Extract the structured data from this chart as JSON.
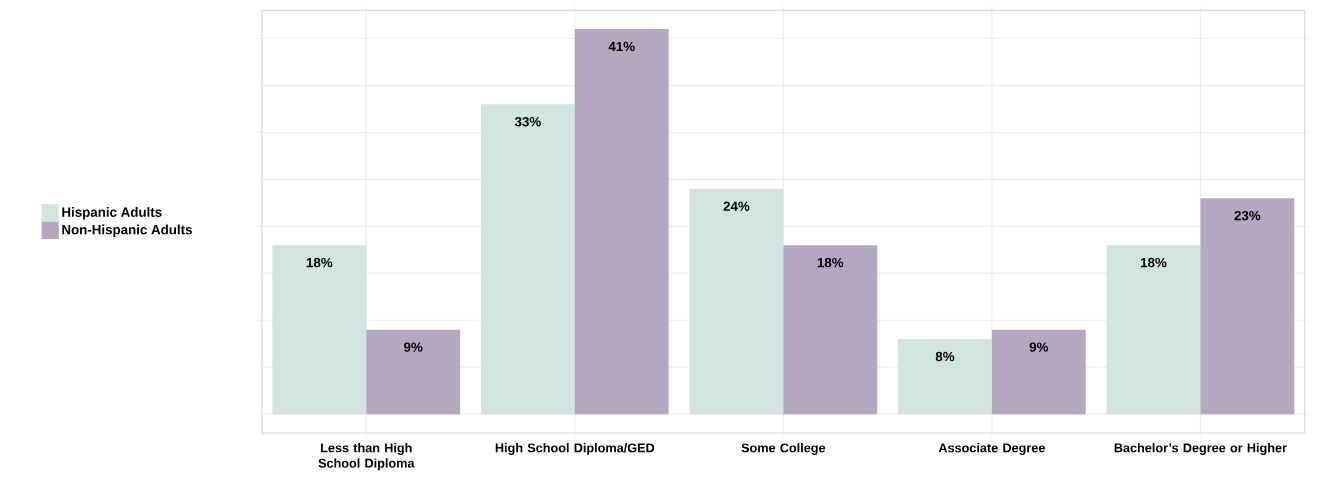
{
  "chart_data": {
    "type": "bar",
    "categories": [
      "Less than High School Diploma",
      "High School Diploma/GED",
      "Some College",
      "Associate Degree",
      "Bachelor’s Degree or Higher"
    ],
    "series": [
      {
        "name": "Hispanic Adults",
        "color": "#d3e3df",
        "values": [
          18,
          33,
          24,
          8,
          18
        ],
        "value_labels": [
          "18%",
          "33%",
          "24%",
          "8%",
          "18%"
        ]
      },
      {
        "name": "Non-Hispanic Adults",
        "color": "#b3a8c0",
        "values": [
          9,
          41,
          18,
          9,
          23
        ],
        "value_labels": [
          "9%",
          "41%",
          "18%",
          "9%",
          "23%"
        ]
      }
    ],
    "ylim": [
      -2,
      43
    ],
    "yticks": [
      {
        "value": 0,
        "label": null
      },
      {
        "value": 10,
        "label": null
      },
      {
        "value": 20,
        "label": null
      },
      {
        "value": 30,
        "label": null
      },
      {
        "value": 40,
        "label": null
      }
    ],
    "tick_labels": "x",
    "grid": true,
    "legend": "left"
  }
}
